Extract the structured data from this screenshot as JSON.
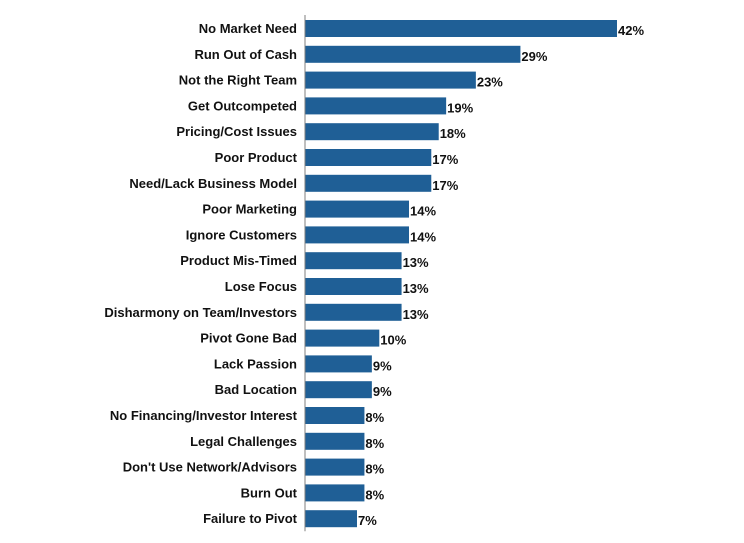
{
  "chart_data": {
    "type": "bar",
    "orientation": "horizontal",
    "categories": [
      "No Market Need",
      "Run Out of Cash",
      "Not the Right Team",
      "Get Outcompeted",
      "Pricing/Cost Issues",
      "Poor Product",
      "Need/Lack Business Model",
      "Poor Marketing",
      "Ignore Customers",
      "Product Mis-Timed",
      "Lose Focus",
      "Disharmony on Team/Investors",
      "Pivot Gone Bad",
      "Lack Passion",
      "Bad Location",
      "No Financing/Investor Interest",
      "Legal Challenges",
      "Don't Use Network/Advisors",
      "Burn Out",
      "Failure to Pivot"
    ],
    "values": [
      42,
      29,
      23,
      19,
      18,
      17,
      17,
      14,
      14,
      13,
      13,
      13,
      10,
      9,
      9,
      8,
      8,
      8,
      8,
      7
    ],
    "value_labels": [
      "42%",
      "29%",
      "23%",
      "19%",
      "18%",
      "17%",
      "17%",
      "14%",
      "14%",
      "13%",
      "13%",
      "13%",
      "10%",
      "9%",
      "9%",
      "8%",
      "8%",
      "8%",
      "8%",
      "7%"
    ],
    "title": "",
    "xlabel": "",
    "ylabel": "",
    "xlim": [
      0,
      42
    ],
    "grid": false,
    "legend": "none",
    "bar_color": "#1f5f96",
    "axis_color": "#7f7f7f"
  }
}
